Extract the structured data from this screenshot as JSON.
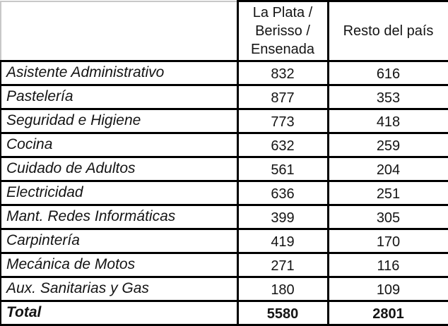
{
  "chart_data": {
    "type": "table",
    "title": "",
    "categories": [
      "Asistente Administrativo",
      "Pastelería",
      "Seguridad e Higiene",
      "Cocina",
      "Cuidado de Adultos",
      "Electricidad",
      "Mant. Redes Informáticas",
      "Carpintería",
      "Mecánica de Motos",
      "Aux. Sanitarias y Gas"
    ],
    "series": [
      {
        "name": "La Plata / Berisso / Ensenada",
        "values": [
          832,
          877,
          773,
          632,
          561,
          636,
          399,
          419,
          271,
          180
        ],
        "total": 5580
      },
      {
        "name": "Resto del país",
        "values": [
          616,
          353,
          418,
          259,
          204,
          251,
          305,
          170,
          116,
          109
        ],
        "total": 2801
      }
    ],
    "total_label": "Total",
    "layout_hints": {
      "grid": "on",
      "header_position": "top",
      "first_column": "row labels, italic",
      "total_row": "bold"
    }
  },
  "colors": {
    "border": "#000000",
    "corner_cell_border": "#c8c8c8",
    "text": "#141414",
    "background": "#ffffff"
  }
}
